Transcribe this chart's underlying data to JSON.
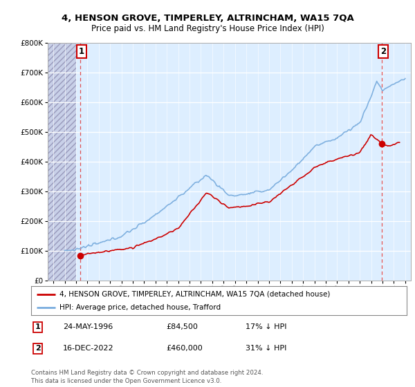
{
  "title": "4, HENSON GROVE, TIMPERLEY, ALTRINCHAM, WA15 7QA",
  "subtitle": "Price paid vs. HM Land Registry's House Price Index (HPI)",
  "legend_line1": "4, HENSON GROVE, TIMPERLEY, ALTRINCHAM, WA15 7QA (detached house)",
  "legend_line2": "HPI: Average price, detached house, Trafford",
  "annotation1_date": "24-MAY-1996",
  "annotation1_price": "£84,500",
  "annotation1_hpi": "17% ↓ HPI",
  "annotation2_date": "16-DEC-2022",
  "annotation2_price": "£460,000",
  "annotation2_hpi": "31% ↓ HPI",
  "footer": "Contains HM Land Registry data © Crown copyright and database right 2024.\nThis data is licensed under the Open Government Licence v3.0.",
  "point1_x": 1996.38,
  "point1_y": 84500,
  "point2_x": 2022.96,
  "point2_y": 460000,
  "ylim": [
    0,
    800000
  ],
  "xlim": [
    1993.5,
    2025.5
  ],
  "red_color": "#cc0000",
  "blue_color": "#7aadde",
  "chart_bg": "#ddeeff",
  "hatch_color": "#c8cce0",
  "grid_color": "#ffffff",
  "anno_box_color": "#cc0000"
}
